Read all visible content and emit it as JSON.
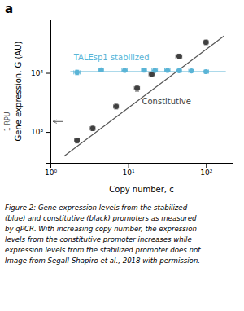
{
  "chart_data": {
    "type": "scatter",
    "title": "a",
    "xlabel": "Copy number, c",
    "ylabel": "Gene expression, G (AU)",
    "log": true,
    "grid": false,
    "xlim": [
      1,
      220
    ],
    "ylim": [
      300,
      80000
    ],
    "xticks": [
      {
        "value": 1,
        "label": "10⁰"
      },
      {
        "value": 10,
        "label": "10¹"
      },
      {
        "value": 100,
        "label": "10²"
      }
    ],
    "yticks": [
      {
        "value": 1000,
        "label": "10³"
      },
      {
        "value": 10000,
        "label": "10⁴"
      }
    ],
    "series": [
      {
        "type": "line",
        "color": "#555555",
        "x": [
          1.5,
          170
        ],
        "values": [
          390,
          42000
        ]
      },
      {
        "type": "line",
        "color": "#5ab4d6",
        "x": [
          1.8,
          180
        ],
        "values": [
          10500,
          10500
        ]
      },
      {
        "name": "Constitutive",
        "type": "scatter",
        "marker": "circle",
        "color": "#404040",
        "x": [
          2.2,
          3.5,
          7.0,
          13.0,
          20.0,
          45.0,
          100.0
        ],
        "values": [
          720,
          1150,
          2700,
          5500,
          9500,
          19000,
          33000
        ],
        "xerr": [
          0.15,
          0.25,
          0.5,
          1.0,
          1.5,
          4.0,
          7.0
        ],
        "yerr": [
          70,
          100,
          250,
          600,
          800,
          1800,
          3000
        ]
      },
      {
        "name": "TALEsp1 stabilized",
        "type": "scatter",
        "marker": "circle",
        "color": "#5ab4d6",
        "x": [
          2.2,
          4.5,
          9.0,
          16.0,
          22.0,
          32.0,
          45.0,
          65.0,
          100.0
        ],
        "values": [
          10200,
          11200,
          11000,
          11100,
          11000,
          11000,
          10900,
          10800,
          10500
        ],
        "xerr": [
          0.2,
          0.3,
          0.7,
          1.2,
          1.8,
          2.5,
          3.5,
          5.0,
          8.0
        ],
        "yerr": [
          900,
          600,
          500,
          500,
          500,
          500,
          500,
          500,
          600
        ]
      }
    ],
    "annotations": [
      {
        "text": "1 RPU",
        "y": 1500
      }
    ],
    "caption": "Figure 2: Gene expression levels from the stabilized\n(blue) and constitutive (black) promoters as measured\nby qPCR. With increasing copy number, the expression\nlevels from the constitutive promoter increases while\nexpression levels from the stabilized promoter does not.\nImage from Segall-Shapiro et al., 2018 with permission."
  }
}
